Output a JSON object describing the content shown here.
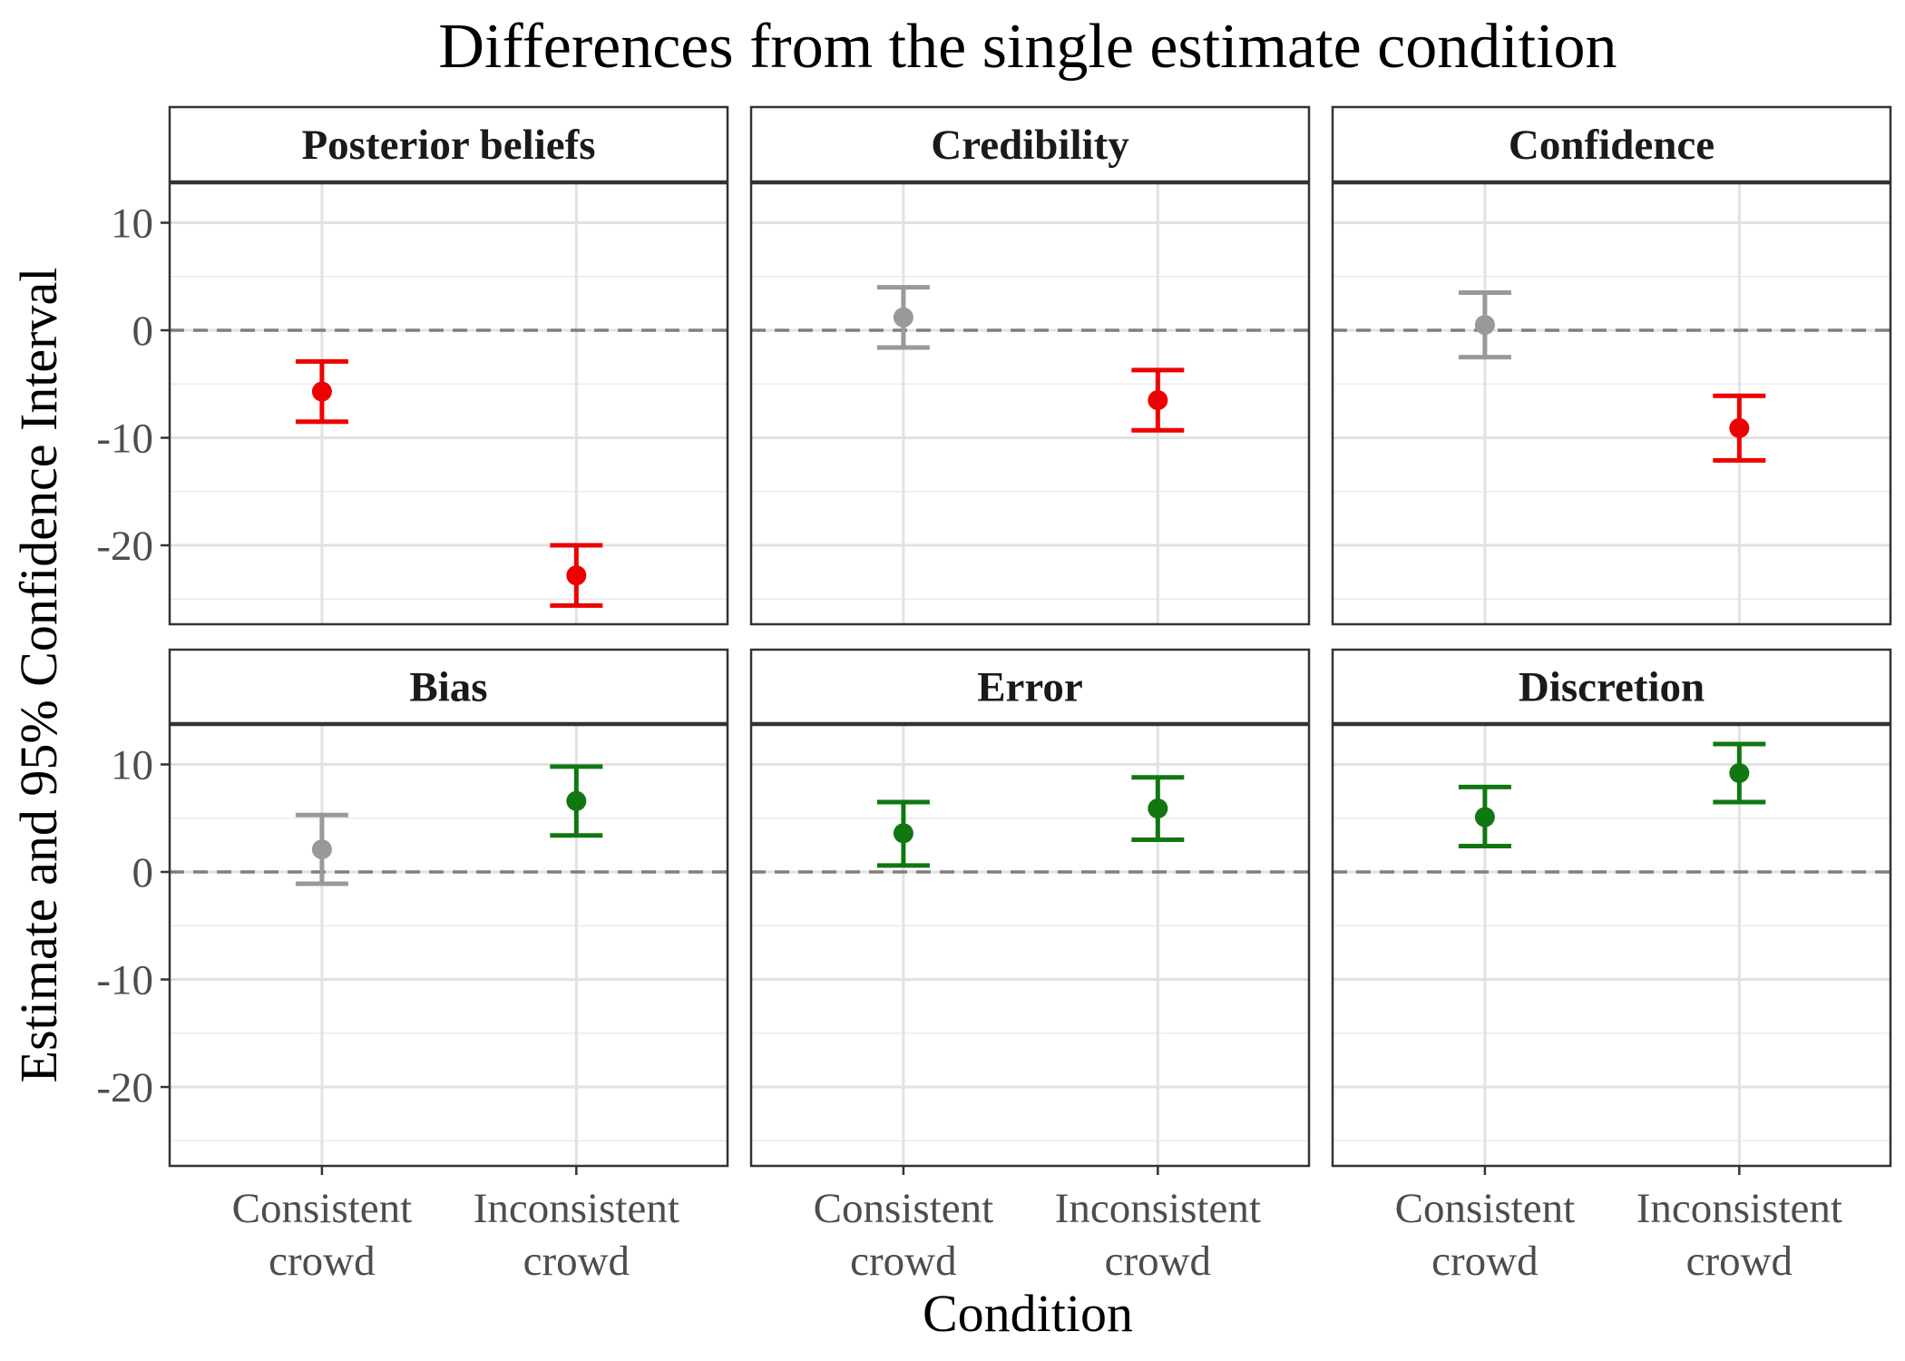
{
  "chart_data": {
    "type": "errorbar",
    "title": "Differences from the single estimate condition",
    "xlabel": "Condition",
    "ylabel": "Estimate and 95% Confidence Interval",
    "categories": [
      "Consistent crowd",
      "Inconsistent crowd"
    ],
    "category_lines": [
      [
        "Consistent",
        "crowd"
      ],
      [
        "Inconsistent",
        "crowd"
      ]
    ],
    "y_ticks": [
      10,
      0,
      -10,
      -20
    ],
    "y_tick_labels": [
      "10",
      "0",
      "-10",
      "-20"
    ],
    "ylim": [
      -27,
      13.5
    ],
    "reference_line": 0,
    "grid": true,
    "colors": {
      "gray": "#999999",
      "red": "#ee0000",
      "green": "#117711"
    },
    "panels": [
      {
        "label": "Posterior beliefs",
        "points": [
          {
            "category": "Consistent crowd",
            "estimate": -5.7,
            "lower": -8.5,
            "upper": -2.9,
            "color": "red"
          },
          {
            "category": "Inconsistent crowd",
            "estimate": -22.8,
            "lower": -25.6,
            "upper": -20.0,
            "color": "red"
          }
        ]
      },
      {
        "label": "Credibility",
        "points": [
          {
            "category": "Consistent crowd",
            "estimate": 1.2,
            "lower": -1.6,
            "upper": 4.0,
            "color": "gray"
          },
          {
            "category": "Inconsistent crowd",
            "estimate": -6.5,
            "lower": -9.3,
            "upper": -3.7,
            "color": "red"
          }
        ]
      },
      {
        "label": "Confidence",
        "points": [
          {
            "category": "Consistent crowd",
            "estimate": 0.5,
            "lower": -2.5,
            "upper": 3.5,
            "color": "gray"
          },
          {
            "category": "Inconsistent crowd",
            "estimate": -9.1,
            "lower": -12.1,
            "upper": -6.1,
            "color": "red"
          }
        ]
      },
      {
        "label": "Bias",
        "points": [
          {
            "category": "Consistent crowd",
            "estimate": 2.1,
            "lower": -1.1,
            "upper": 5.3,
            "color": "gray"
          },
          {
            "category": "Inconsistent crowd",
            "estimate": 6.6,
            "lower": 3.4,
            "upper": 9.8,
            "color": "green"
          }
        ]
      },
      {
        "label": "Error",
        "points": [
          {
            "category": "Consistent crowd",
            "estimate": 3.6,
            "lower": 0.6,
            "upper": 6.5,
            "color": "green"
          },
          {
            "category": "Inconsistent crowd",
            "estimate": 5.9,
            "lower": 3.0,
            "upper": 8.8,
            "color": "green"
          }
        ]
      },
      {
        "label": "Discretion",
        "points": [
          {
            "category": "Consistent crowd",
            "estimate": 5.1,
            "lower": 2.4,
            "upper": 7.9,
            "color": "green"
          },
          {
            "category": "Inconsistent crowd",
            "estimate": 9.2,
            "lower": 6.5,
            "upper": 11.9,
            "color": "green"
          }
        ]
      }
    ]
  }
}
